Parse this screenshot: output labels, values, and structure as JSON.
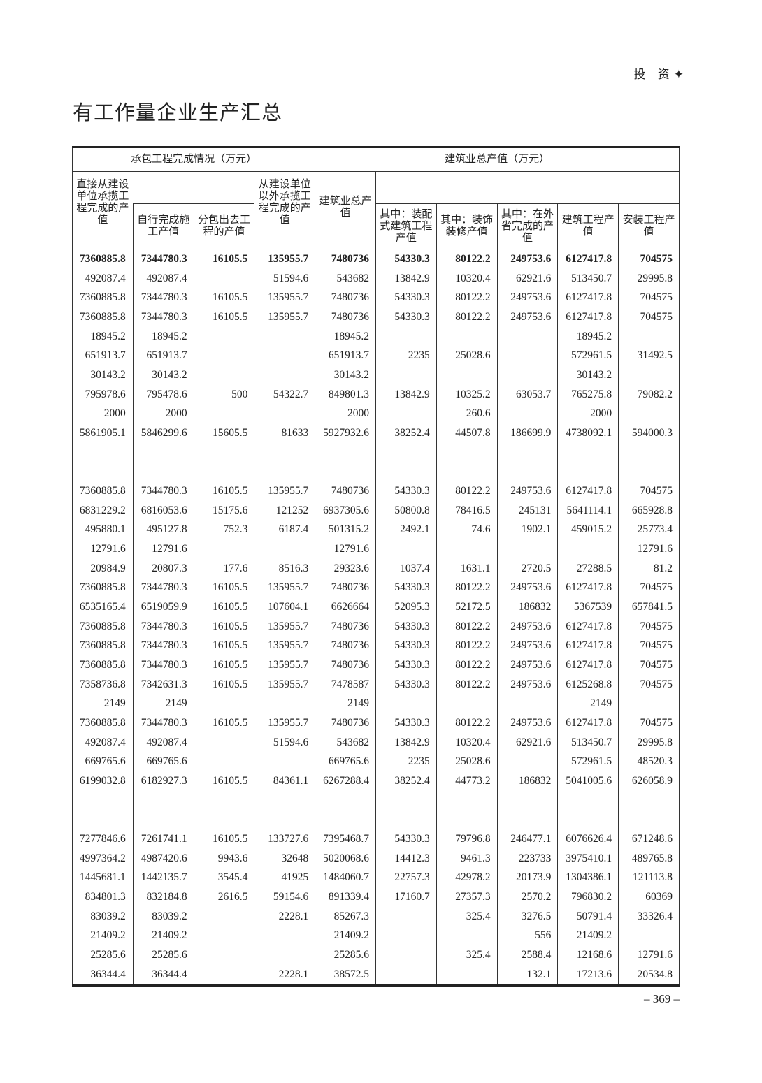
{
  "running_header": "投 资",
  "running_icon": "diamond-icon",
  "title": "有工作量企业生产汇总",
  "group_headers": [
    "承包工程完成情况（万元）",
    "建筑业总产值（万元）"
  ],
  "columns": [
    "直接从建设单位承揽工程完成的产值",
    "自行完成施工产值",
    "分包出去工程的产值",
    "从建设单位以外承揽工程完成的产值",
    "建筑业总产值",
    "其中：装配式建筑工程产值",
    "其中：装饰装修产值",
    "其中：在外省完成的产值",
    "建筑工程产值",
    "安装工程产值"
  ],
  "rows": [
    [
      "7360885.8",
      "7344780.3",
      "16105.5",
      "135955.7",
      "7480736",
      "54330.3",
      "80122.2",
      "249753.6",
      "6127417.8",
      "704575"
    ],
    [
      "492087.4",
      "492087.4",
      "",
      "51594.6",
      "543682",
      "13842.9",
      "10320.4",
      "62921.6",
      "513450.7",
      "29995.8"
    ],
    [
      "7360885.8",
      "7344780.3",
      "16105.5",
      "135955.7",
      "7480736",
      "54330.3",
      "80122.2",
      "249753.6",
      "6127417.8",
      "704575"
    ],
    [
      "7360885.8",
      "7344780.3",
      "16105.5",
      "135955.7",
      "7480736",
      "54330.3",
      "80122.2",
      "249753.6",
      "6127417.8",
      "704575"
    ],
    [
      "18945.2",
      "18945.2",
      "",
      "",
      "18945.2",
      "",
      "",
      "",
      "18945.2",
      ""
    ],
    [
      "651913.7",
      "651913.7",
      "",
      "",
      "651913.7",
      "2235",
      "25028.6",
      "",
      "572961.5",
      "31492.5"
    ],
    [
      "30143.2",
      "30143.2",
      "",
      "",
      "30143.2",
      "",
      "",
      "",
      "30143.2",
      ""
    ],
    [
      "795978.6",
      "795478.6",
      "500",
      "54322.7",
      "849801.3",
      "13842.9",
      "10325.2",
      "63053.7",
      "765275.8",
      "79082.2"
    ],
    [
      "2000",
      "2000",
      "",
      "",
      "2000",
      "",
      "260.6",
      "",
      "2000",
      ""
    ],
    [
      "5861905.1",
      "5846299.6",
      "15605.5",
      "81633",
      "5927932.6",
      "38252.4",
      "44507.8",
      "186699.9",
      "4738092.1",
      "594000.3"
    ],
    [
      "",
      "",
      "",
      "",
      "",
      "",
      "",
      "",
      "",
      ""
    ],
    [
      "",
      "",
      "",
      "",
      "",
      "",
      "",
      "",
      "",
      ""
    ],
    [
      "7360885.8",
      "7344780.3",
      "16105.5",
      "135955.7",
      "7480736",
      "54330.3",
      "80122.2",
      "249753.6",
      "6127417.8",
      "704575"
    ],
    [
      "6831229.2",
      "6816053.6",
      "15175.6",
      "121252",
      "6937305.6",
      "50800.8",
      "78416.5",
      "245131",
      "5641114.1",
      "665928.8"
    ],
    [
      "495880.1",
      "495127.8",
      "752.3",
      "6187.4",
      "501315.2",
      "2492.1",
      "74.6",
      "1902.1",
      "459015.2",
      "25773.4"
    ],
    [
      "12791.6",
      "12791.6",
      "",
      "",
      "12791.6",
      "",
      "",
      "",
      "",
      "12791.6"
    ],
    [
      "20984.9",
      "20807.3",
      "177.6",
      "8516.3",
      "29323.6",
      "1037.4",
      "1631.1",
      "2720.5",
      "27288.5",
      "81.2"
    ],
    [
      "7360885.8",
      "7344780.3",
      "16105.5",
      "135955.7",
      "7480736",
      "54330.3",
      "80122.2",
      "249753.6",
      "6127417.8",
      "704575"
    ],
    [
      "6535165.4",
      "6519059.9",
      "16105.5",
      "107604.1",
      "6626664",
      "52095.3",
      "52172.5",
      "186832",
      "5367539",
      "657841.5"
    ],
    [
      "7360885.8",
      "7344780.3",
      "16105.5",
      "135955.7",
      "7480736",
      "54330.3",
      "80122.2",
      "249753.6",
      "6127417.8",
      "704575"
    ],
    [
      "7360885.8",
      "7344780.3",
      "16105.5",
      "135955.7",
      "7480736",
      "54330.3",
      "80122.2",
      "249753.6",
      "6127417.8",
      "704575"
    ],
    [
      "7360885.8",
      "7344780.3",
      "16105.5",
      "135955.7",
      "7480736",
      "54330.3",
      "80122.2",
      "249753.6",
      "6127417.8",
      "704575"
    ],
    [
      "7358736.8",
      "7342631.3",
      "16105.5",
      "135955.7",
      "7478587",
      "54330.3",
      "80122.2",
      "249753.6",
      "6125268.8",
      "704575"
    ],
    [
      "2149",
      "2149",
      "",
      "",
      "2149",
      "",
      "",
      "",
      "2149",
      ""
    ],
    [
      "7360885.8",
      "7344780.3",
      "16105.5",
      "135955.7",
      "7480736",
      "54330.3",
      "80122.2",
      "249753.6",
      "6127417.8",
      "704575"
    ],
    [
      "492087.4",
      "492087.4",
      "",
      "51594.6",
      "543682",
      "13842.9",
      "10320.4",
      "62921.6",
      "513450.7",
      "29995.8"
    ],
    [
      "669765.6",
      "669765.6",
      "",
      "",
      "669765.6",
      "2235",
      "25028.6",
      "",
      "572961.5",
      "48520.3"
    ],
    [
      "6199032.8",
      "6182927.3",
      "16105.5",
      "84361.1",
      "6267288.4",
      "38252.4",
      "44773.2",
      "186832",
      "5041005.6",
      "626058.9"
    ],
    [
      "",
      "",
      "",
      "",
      "",
      "",
      "",
      "",
      "",
      ""
    ],
    [
      "",
      "",
      "",
      "",
      "",
      "",
      "",
      "",
      "",
      ""
    ],
    [
      "7277846.6",
      "7261741.1",
      "16105.5",
      "133727.6",
      "7395468.7",
      "54330.3",
      "79796.8",
      "246477.1",
      "6076626.4",
      "671248.6"
    ],
    [
      "4997364.2",
      "4987420.6",
      "9943.6",
      "32648",
      "5020068.6",
      "14412.3",
      "9461.3",
      "223733",
      "3975410.1",
      "489765.8"
    ],
    [
      "1445681.1",
      "1442135.7",
      "3545.4",
      "41925",
      "1484060.7",
      "22757.3",
      "42978.2",
      "20173.9",
      "1304386.1",
      "121113.8"
    ],
    [
      "834801.3",
      "832184.8",
      "2616.5",
      "59154.6",
      "891339.4",
      "17160.7",
      "27357.3",
      "2570.2",
      "796830.2",
      "60369"
    ],
    [
      "83039.2",
      "83039.2",
      "",
      "2228.1",
      "85267.3",
      "",
      "325.4",
      "3276.5",
      "50791.4",
      "33326.4"
    ],
    [
      "21409.2",
      "21409.2",
      "",
      "",
      "21409.2",
      "",
      "",
      "556",
      "21409.2",
      ""
    ],
    [
      "25285.6",
      "25285.6",
      "",
      "",
      "25285.6",
      "",
      "325.4",
      "2588.4",
      "12168.6",
      "12791.6"
    ],
    [
      "36344.4",
      "36344.4",
      "",
      "2228.1",
      "38572.5",
      "",
      "",
      "132.1",
      "17213.6",
      "20534.8"
    ]
  ],
  "page_number": "– 369 –"
}
